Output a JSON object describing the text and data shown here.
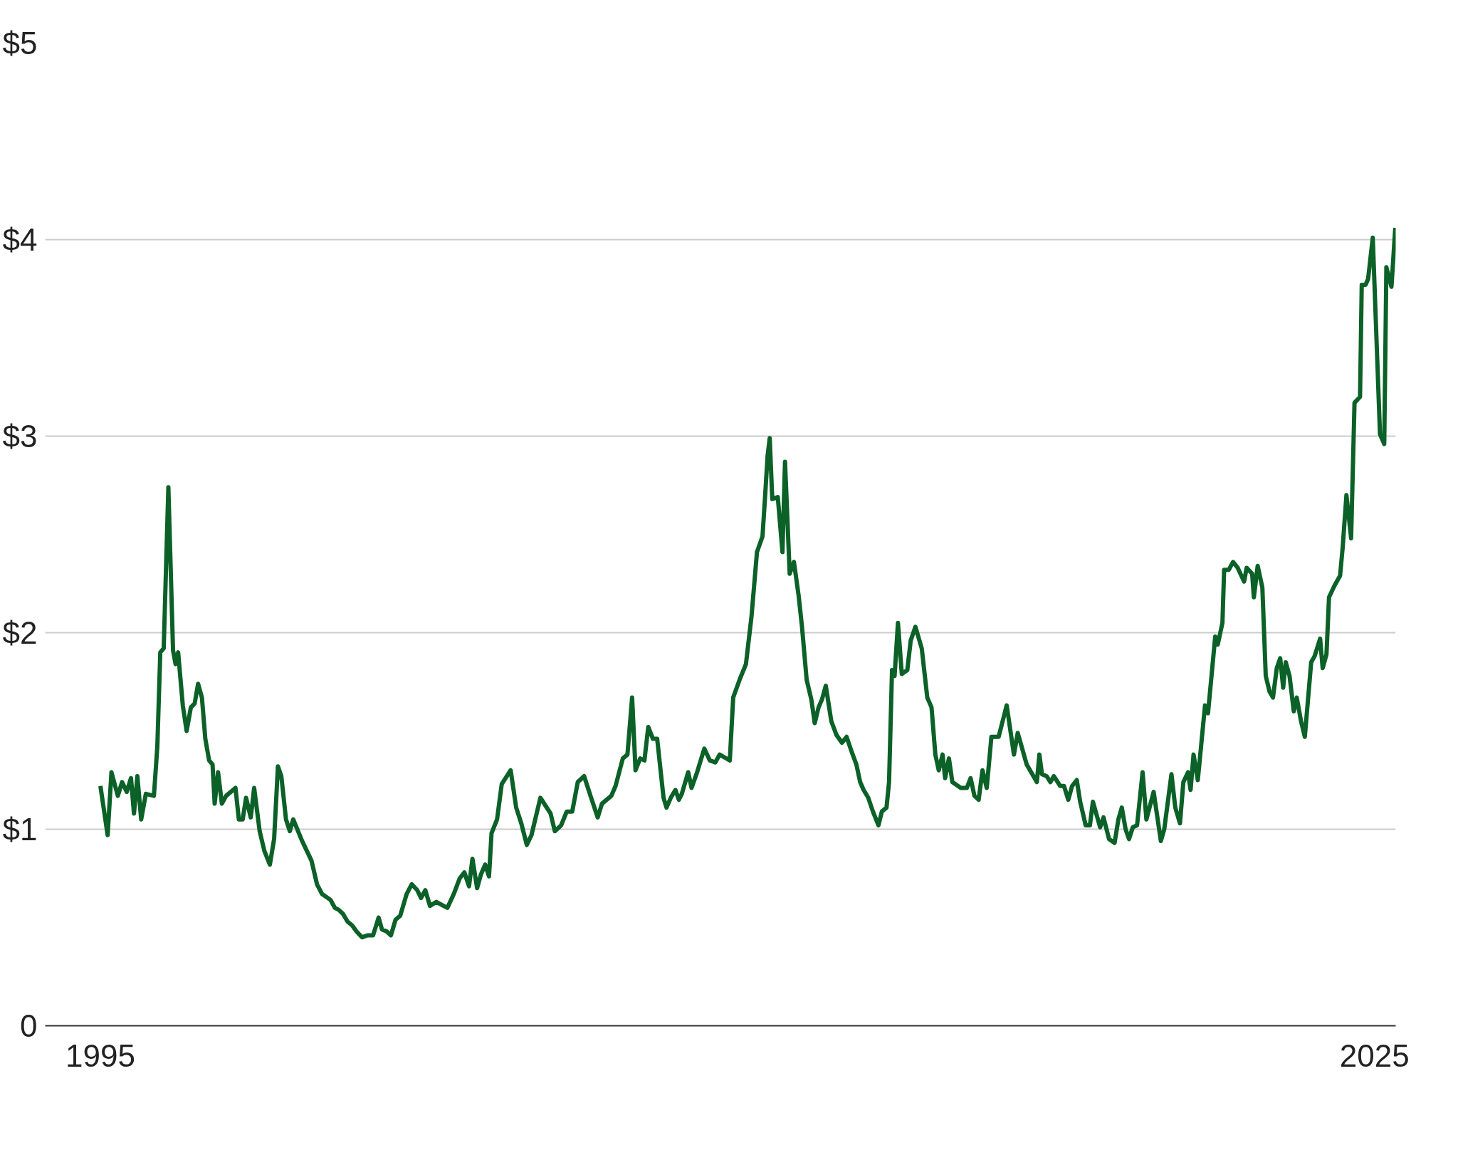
{
  "chart_data": {
    "type": "line",
    "xlim": [
      1993.7,
      2025.5
    ],
    "xticks": [
      1995,
      2025
    ],
    "ylim": [
      0,
      5
    ],
    "yticks": [
      0,
      {
        "value": 1,
        "label": "$1"
      },
      {
        "value": 2,
        "label": "$2"
      },
      {
        "value": 3,
        "label": "$3"
      },
      {
        "value": 4,
        "label": "$4"
      },
      {
        "value": 5,
        "label": "$5"
      }
    ],
    "grid": "y",
    "line_style": "solid",
    "x": [
      1995.0,
      1995.17,
      1995.26,
      1995.41,
      1995.51,
      1995.62,
      1995.72,
      1995.79,
      1995.87,
      1995.96,
      1996.07,
      1996.26,
      1996.34,
      1996.41,
      1996.49,
      1996.6,
      1996.71,
      1996.77,
      1996.83,
      1996.94,
      1997.03,
      1997.13,
      1997.22,
      1997.3,
      1997.39,
      1997.47,
      1997.56,
      1997.64,
      1997.69,
      1997.77,
      1997.86,
      1997.96,
      1998.18,
      1998.26,
      1998.35,
      1998.43,
      1998.54,
      1998.62,
      1998.75,
      1998.86,
      1998.99,
      1999.09,
      1999.18,
      1999.26,
      1999.37,
      1999.46,
      1999.54,
      1999.75,
      1999.86,
      1999.97,
      2000.1,
      2000.22,
      2000.42,
      2000.52,
      2000.61,
      2000.71,
      2000.82,
      2000.93,
      2001.03,
      2001.16,
      2001.29,
      2001.42,
      2001.55,
      2001.63,
      2001.74,
      2001.84,
      2001.95,
      2002.06,
      2002.21,
      2002.33,
      2002.46,
      2002.55,
      2002.65,
      2002.76,
      2002.91,
      2003.08,
      2003.17,
      2003.32,
      2003.46,
      2003.57,
      2003.68,
      2003.76,
      2003.87,
      2003.96,
      2004.06,
      2004.15,
      2004.21,
      2004.34,
      2004.45,
      2004.66,
      2004.79,
      2004.91,
      2005.04,
      2005.15,
      2005.36,
      2005.6,
      2005.7,
      2005.85,
      2005.98,
      2006.11,
      2006.24,
      2006.39,
      2006.54,
      2006.71,
      2006.81,
      2007.03,
      2007.13,
      2007.3,
      2007.41,
      2007.52,
      2007.6,
      2007.71,
      2007.81,
      2007.9,
      2008.01,
      2008.11,
      2008.26,
      2008.33,
      2008.43,
      2008.54,
      2008.62,
      2008.69,
      2008.84,
      2008.92,
      2009.05,
      2009.22,
      2009.35,
      2009.48,
      2009.58,
      2009.82,
      2009.9,
      2010.05,
      2010.2,
      2010.33,
      2010.46,
      2010.59,
      2010.65,
      2010.71,
      2010.76,
      2010.82,
      2010.95,
      2011.06,
      2011.12,
      2011.23,
      2011.33,
      2011.44,
      2011.52,
      2011.63,
      2011.74,
      2011.82,
      2011.91,
      2011.99,
      2012.08,
      2012.21,
      2012.33,
      2012.46,
      2012.57,
      2012.68,
      2012.8,
      2012.89,
      2012.97,
      2013.08,
      2013.19,
      2013.32,
      2013.4,
      2013.51,
      2013.57,
      2013.64,
      2013.7,
      2013.78,
      2013.87,
      2014.0,
      2014.08,
      2014.19,
      2014.34,
      2014.47,
      2014.57,
      2014.66,
      2014.74,
      2014.83,
      2014.89,
      2014.98,
      2015.06,
      2015.26,
      2015.4,
      2015.49,
      2015.58,
      2015.68,
      2015.77,
      2015.87,
      2015.98,
      2016.15,
      2016.34,
      2016.51,
      2016.6,
      2016.81,
      2017.05,
      2017.11,
      2017.17,
      2017.28,
      2017.37,
      2017.45,
      2017.6,
      2017.69,
      2017.79,
      2017.88,
      2017.99,
      2018.07,
      2018.2,
      2018.3,
      2018.37,
      2018.54,
      2018.62,
      2018.75,
      2018.88,
      2018.97,
      2019.05,
      2019.14,
      2019.22,
      2019.31,
      2019.41,
      2019.54,
      2019.63,
      2019.8,
      2019.97,
      2020.05,
      2020.22,
      2020.31,
      2020.42,
      2020.5,
      2020.61,
      2020.67,
      2020.74,
      2020.84,
      2021.01,
      2021.08,
      2021.25,
      2021.31,
      2021.42,
      2021.46,
      2021.57,
      2021.67,
      2021.78,
      2021.93,
      2021.99,
      2022.12,
      2022.16,
      2022.25,
      2022.36,
      2022.44,
      2022.53,
      2022.61,
      2022.7,
      2022.78,
      2022.85,
      2022.91,
      2023.0,
      2023.1,
      2023.17,
      2023.27,
      2023.36,
      2023.51,
      2023.59,
      2023.72,
      2023.78,
      2023.87,
      2023.93,
      2024.06,
      2024.19,
      2024.25,
      2024.34,
      2024.45,
      2024.53,
      2024.66,
      2024.7,
      2024.79,
      2024.85,
      2024.96,
      2025.13,
      2025.23,
      2025.28,
      2025.4,
      2025.49
    ],
    "series": [
      {
        "color": "#0b6127",
        "values": [
          1.22,
          0.97,
          1.29,
          1.17,
          1.24,
          1.19,
          1.26,
          1.08,
          1.27,
          1.05,
          1.18,
          1.17,
          1.42,
          1.9,
          1.92,
          2.74,
          1.91,
          1.84,
          1.9,
          1.63,
          1.5,
          1.62,
          1.64,
          1.74,
          1.67,
          1.46,
          1.35,
          1.33,
          1.13,
          1.29,
          1.13,
          1.17,
          1.21,
          1.05,
          1.05,
          1.16,
          1.06,
          1.21,
          0.99,
          0.89,
          0.82,
          0.95,
          1.32,
          1.27,
          1.05,
          0.99,
          1.05,
          0.94,
          0.89,
          0.84,
          0.72,
          0.67,
          0.64,
          0.6,
          0.59,
          0.57,
          0.53,
          0.51,
          0.48,
          0.45,
          0.46,
          0.46,
          0.55,
          0.49,
          0.48,
          0.46,
          0.54,
          0.56,
          0.67,
          0.72,
          0.69,
          0.65,
          0.69,
          0.61,
          0.63,
          0.61,
          0.6,
          0.67,
          0.75,
          0.78,
          0.71,
          0.85,
          0.7,
          0.77,
          0.82,
          0.76,
          0.98,
          1.05,
          1.23,
          1.3,
          1.11,
          1.03,
          0.92,
          0.97,
          1.16,
          1.08,
          0.99,
          1.02,
          1.09,
          1.09,
          1.24,
          1.27,
          1.17,
          1.06,
          1.13,
          1.17,
          1.22,
          1.36,
          1.38,
          1.67,
          1.3,
          1.36,
          1.35,
          1.52,
          1.46,
          1.46,
          1.16,
          1.11,
          1.16,
          1.2,
          1.15,
          1.18,
          1.29,
          1.21,
          1.29,
          1.41,
          1.35,
          1.34,
          1.38,
          1.35,
          1.67,
          1.76,
          1.84,
          2.08,
          2.41,
          2.49,
          2.69,
          2.9,
          2.99,
          2.68,
          2.69,
          2.41,
          2.87,
          2.3,
          2.36,
          2.19,
          2.03,
          1.76,
          1.66,
          1.54,
          1.62,
          1.66,
          1.73,
          1.55,
          1.48,
          1.44,
          1.47,
          1.4,
          1.33,
          1.24,
          1.2,
          1.16,
          1.09,
          1.02,
          1.09,
          1.11,
          1.24,
          1.81,
          1.78,
          2.05,
          1.79,
          1.81,
          1.96,
          2.03,
          1.92,
          1.67,
          1.62,
          1.38,
          1.3,
          1.38,
          1.26,
          1.36,
          1.24,
          1.21,
          1.21,
          1.26,
          1.17,
          1.15,
          1.3,
          1.21,
          1.47,
          1.47,
          1.63,
          1.38,
          1.49,
          1.33,
          1.24,
          1.38,
          1.28,
          1.27,
          1.24,
          1.27,
          1.22,
          1.22,
          1.15,
          1.22,
          1.25,
          1.14,
          1.02,
          1.02,
          1.14,
          1.01,
          1.06,
          0.95,
          0.93,
          1.05,
          1.11,
          1.0,
          0.95,
          1.01,
          1.02,
          1.29,
          1.05,
          1.19,
          0.94,
          1.0,
          1.28,
          1.11,
          1.03,
          1.24,
          1.29,
          1.2,
          1.38,
          1.25,
          1.63,
          1.59,
          1.98,
          1.94,
          2.05,
          2.32,
          2.32,
          2.36,
          2.33,
          2.26,
          2.33,
          2.3,
          2.18,
          2.34,
          2.23,
          1.78,
          1.7,
          1.67,
          1.82,
          1.87,
          1.72,
          1.85,
          1.78,
          1.6,
          1.67,
          1.55,
          1.47,
          1.85,
          1.88,
          1.97,
          1.82,
          1.89,
          2.18,
          2.24,
          2.29,
          2.43,
          2.7,
          2.48,
          3.17,
          3.2,
          3.77,
          3.77,
          3.8,
          4.01,
          3.01,
          2.96,
          3.86,
          3.76,
          4.06
        ]
      }
    ]
  }
}
